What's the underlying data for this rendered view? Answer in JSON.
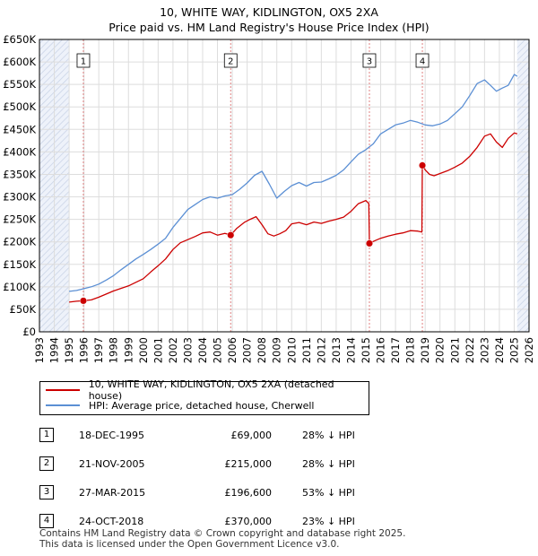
{
  "title_line1": "10, WHITE WAY, KIDLINGTON, OX5 2XA",
  "title_line2": "Price paid vs. HM Land Registry's House Price Index (HPI)",
  "legend": {
    "property_label": "10, WHITE WAY, KIDLINGTON, OX5 2XA (detached house)",
    "hpi_label": "HPI: Average price, detached house, Cherwell"
  },
  "colors": {
    "property": "#cc0000",
    "hpi": "#5b8fd4",
    "marker_line": "#e08080",
    "shade": "#eef2fa"
  },
  "sales": [
    {
      "num": "1",
      "date": "18-DEC-1995",
      "price": "£69,000",
      "hpi": "28% ↓ HPI"
    },
    {
      "num": "2",
      "date": "21-NOV-2005",
      "price": "£215,000",
      "hpi": "28% ↓ HPI"
    },
    {
      "num": "3",
      "date": "27-MAR-2015",
      "price": "£196,600",
      "hpi": "53% ↓ HPI"
    },
    {
      "num": "4",
      "date": "24-OCT-2018",
      "price": "£370,000",
      "hpi": "23% ↓ HPI"
    }
  ],
  "footer_line1": "Contains HM Land Registry data © Crown copyright and database right 2025.",
  "footer_line2": "This data is licensed under the Open Government Licence v3.0.",
  "chart_data": {
    "type": "line",
    "title": "10, WHITE WAY, KIDLINGTON, OX5 2XA",
    "subtitle": "Price paid vs. HM Land Registry's House Price Index (HPI)",
    "xlim": [
      1993,
      2026
    ],
    "ylim": [
      0,
      650000
    ],
    "x_ticks": [
      "1993",
      "1994",
      "1995",
      "1996",
      "1997",
      "1998",
      "1999",
      "2000",
      "2001",
      "2002",
      "2003",
      "2004",
      "2005",
      "2006",
      "2007",
      "2008",
      "2009",
      "2010",
      "2011",
      "2012",
      "2013",
      "2014",
      "2015",
      "2016",
      "2017",
      "2018",
      "2019",
      "2020",
      "2021",
      "2022",
      "2023",
      "2024",
      "2025",
      "2026"
    ],
    "y_ticks": [
      0,
      50000,
      100000,
      150000,
      200000,
      250000,
      300000,
      350000,
      400000,
      450000,
      500000,
      550000,
      600000,
      650000
    ],
    "y_tick_labels": [
      "£0",
      "£50K",
      "£100K",
      "£150K",
      "£200K",
      "£250K",
      "£300K",
      "£350K",
      "£400K",
      "£450K",
      "£500K",
      "£550K",
      "£600K",
      "£650K"
    ],
    "data_range": [
      1995.0,
      2025.2
    ],
    "sale_markers": [
      {
        "label": "1",
        "x": 1995.96,
        "y": 69000
      },
      {
        "label": "2",
        "x": 2005.89,
        "y": 215000
      },
      {
        "label": "3",
        "x": 2015.24,
        "y": 196600
      },
      {
        "label": "4",
        "x": 2018.81,
        "y": 370000
      }
    ],
    "series": [
      {
        "name": "10, WHITE WAY, KIDLINGTON, OX5 2XA (detached house)",
        "x": [
          1995.0,
          1995.5,
          1995.96,
          1996.5,
          1997,
          1997.5,
          1998,
          1999,
          2000,
          2000.5,
          2001,
          2001.5,
          2002,
          2002.5,
          2003,
          2003.5,
          2004,
          2004.5,
          2005,
          2005.5,
          2005.89,
          2006.3,
          2006.8,
          2007.2,
          2007.6,
          2008,
          2008.4,
          2008.8,
          2009.2,
          2009.6,
          2010,
          2010.5,
          2011,
          2011.5,
          2012,
          2012.5,
          2013,
          2013.5,
          2014,
          2014.5,
          2015.0,
          2015.2,
          2015.24,
          2015.5,
          2016,
          2016.5,
          2017,
          2017.5,
          2018,
          2018.5,
          2018.78,
          2018.81,
          2019.0,
          2019.3,
          2019.6,
          2020,
          2020.5,
          2021,
          2021.5,
          2022,
          2022.5,
          2023,
          2023.4,
          2023.8,
          2024.2,
          2024.6,
          2025.0,
          2025.2
        ],
        "y": [
          66000,
          68000,
          69000,
          71000,
          77000,
          84000,
          91000,
          102000,
          118000,
          133000,
          147000,
          162000,
          183000,
          198000,
          205000,
          212000,
          220000,
          222000,
          215000,
          219000,
          215000,
          230000,
          243000,
          250000,
          256000,
          238000,
          218000,
          213000,
          218000,
          225000,
          240000,
          243000,
          238000,
          244000,
          241000,
          246000,
          250000,
          255000,
          268000,
          285000,
          292000,
          285000,
          196600,
          201000,
          208000,
          213000,
          217000,
          220000,
          225000,
          224000,
          222000,
          370000,
          360000,
          350000,
          347000,
          352000,
          358000,
          366000,
          375000,
          390000,
          410000,
          435000,
          440000,
          422000,
          410000,
          430000,
          442000,
          440000
        ]
      },
      {
        "name": "HPI: Average price, detached house, Cherwell",
        "x": [
          1995.0,
          1995.5,
          1996,
          1996.5,
          1997,
          1997.5,
          1998,
          1998.5,
          1999,
          1999.5,
          2000,
          2000.5,
          2001,
          2001.5,
          2002,
          2002.5,
          2003,
          2003.5,
          2004,
          2004.5,
          2005,
          2005.5,
          2006,
          2006.5,
          2007,
          2007.5,
          2008,
          2008.5,
          2009,
          2009.5,
          2010,
          2010.5,
          2011,
          2011.5,
          2012,
          2012.5,
          2013,
          2013.5,
          2014,
          2014.5,
          2015,
          2015.5,
          2016,
          2016.5,
          2017,
          2017.5,
          2018,
          2018.5,
          2019,
          2019.5,
          2020,
          2020.5,
          2021,
          2021.5,
          2022,
          2022.5,
          2023,
          2023.4,
          2023.8,
          2024.2,
          2024.6,
          2025.0,
          2025.2
        ],
        "y": [
          90000,
          92000,
          96000,
          100000,
          106000,
          115000,
          125000,
          138000,
          150000,
          162000,
          172000,
          183000,
          195000,
          208000,
          232000,
          252000,
          272000,
          283000,
          294000,
          300000,
          297000,
          302000,
          305000,
          317000,
          331000,
          348000,
          357000,
          328000,
          297000,
          312000,
          325000,
          332000,
          324000,
          332000,
          333000,
          340000,
          348000,
          360000,
          378000,
          395000,
          405000,
          418000,
          440000,
          450000,
          460000,
          464000,
          470000,
          466000,
          460000,
          458000,
          462000,
          470000,
          485000,
          500000,
          525000,
          552000,
          560000,
          548000,
          535000,
          542000,
          548000,
          572000,
          568000
        ]
      }
    ],
    "legend_position": "bottom",
    "grid": true
  }
}
